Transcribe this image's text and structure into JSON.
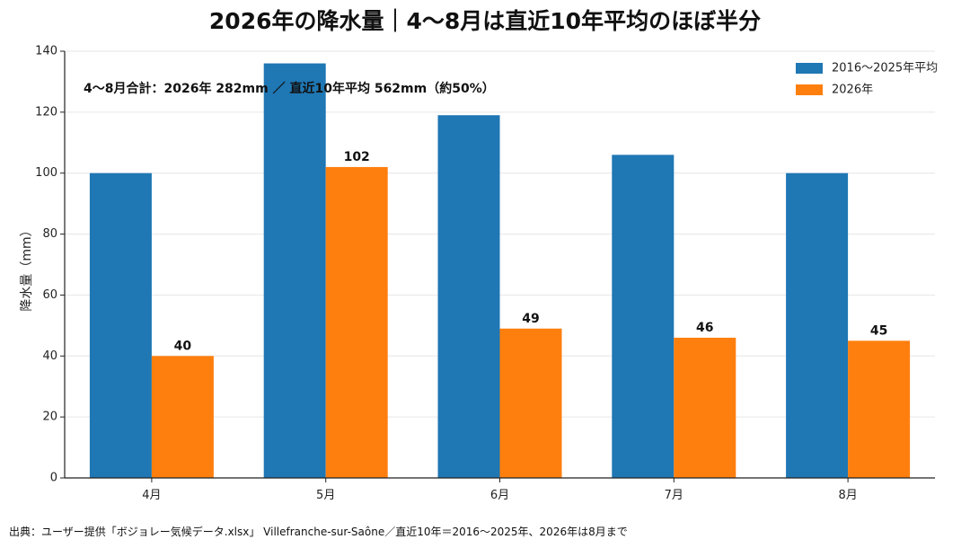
{
  "title": "2026年の降水量｜4〜8月は直近10年平均のほぼ半分",
  "source_note": "出典：ユーザー提供「ボジョレー気候データ.xlsx」 Villefranche-sur-Saône／直近10年＝2016〜2025年、2026年は8月まで",
  "annotation": "4〜8月合計：2026年 282mm ／ 直近10年平均 562mm（約50%）",
  "colors": {
    "average": "#1f77b4",
    "year2026": "#ff7f0e",
    "grid": "#e6e6e6",
    "axis": "#222222"
  },
  "chart_data": {
    "type": "bar",
    "title": "2026年の降水量｜4〜8月は直近10年平均のほぼ半分",
    "xlabel": "",
    "ylabel": "降水量（mm）",
    "categories": [
      "4月",
      "5月",
      "6月",
      "7月",
      "8月"
    ],
    "series": [
      {
        "name": "2016〜2025年平均",
        "values": [
          100,
          136,
          119,
          106,
          100
        ],
        "color": "#1f77b4",
        "show_labels": false
      },
      {
        "name": "2026年",
        "values": [
          40,
          102,
          49,
          46,
          45
        ],
        "color": "#ff7f0e",
        "show_labels": true
      }
    ],
    "ylim": [
      0,
      140
    ],
    "yticks": [
      0,
      20,
      40,
      60,
      80,
      100,
      120,
      140
    ],
    "grid": true,
    "legend_position": "top-right"
  }
}
